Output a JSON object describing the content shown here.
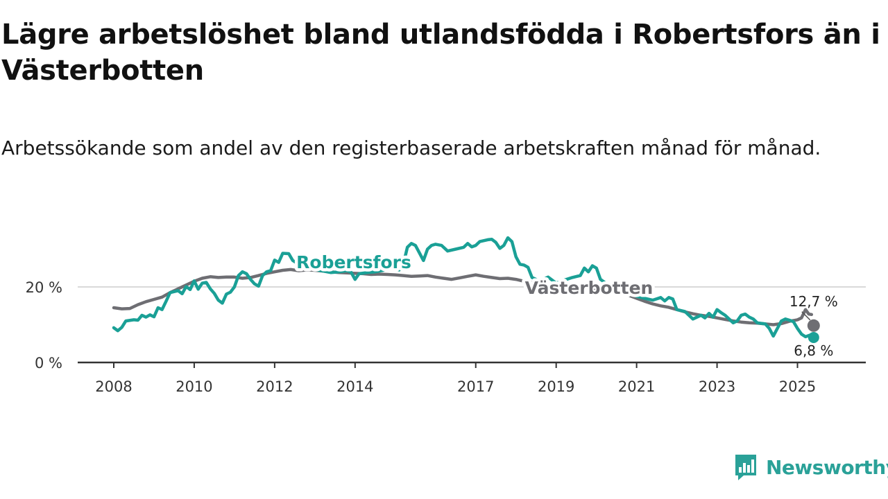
{
  "title": "Lägre arbetslöshet bland utlandsfödda i Robertsfors än i Västerbotten",
  "subtitle": "Arbetssökande som andel av den registerbaserade arbetskraften månad för månad.",
  "brand": {
    "name": "Newsworthy",
    "icon": "newsworthy-logo-icon",
    "color": "#2aa198"
  },
  "chart_data": {
    "type": "line",
    "title": "Lägre arbetslöshet bland utlandsfödda i Robertsfors än i Västerbotten",
    "subtitle": "Arbetssökande som andel av den registerbaserade arbetskraften månad för månad.",
    "xlabel": "",
    "ylabel": "",
    "xlim": [
      2008.0,
      2025.75
    ],
    "ylim": [
      0,
      35
    ],
    "x_ticks": [
      {
        "value": 2008,
        "label": "2008"
      },
      {
        "value": 2010,
        "label": "2010"
      },
      {
        "value": 2012,
        "label": "2012"
      },
      {
        "value": 2014,
        "label": "2014"
      },
      {
        "value": 2017,
        "label": "2017"
      },
      {
        "value": 2019,
        "label": "2019"
      },
      {
        "value": 2021,
        "label": "2021"
      },
      {
        "value": 2023,
        "label": "2023"
      },
      {
        "value": 2025,
        "label": "2025"
      }
    ],
    "y_ticks": [
      {
        "value": 0,
        "label": "0 %"
      },
      {
        "value": 20,
        "label": "20 %"
      }
    ],
    "grid": true,
    "series": [
      {
        "name": "Västerbotten",
        "color": "#6e6e73",
        "end_label": "12,7 %",
        "points": [
          [
            2008.0,
            14.5
          ],
          [
            2008.2,
            14.2
          ],
          [
            2008.4,
            14.3
          ],
          [
            2008.6,
            15.3
          ],
          [
            2008.8,
            16.1
          ],
          [
            2009.0,
            16.7
          ],
          [
            2009.2,
            17.3
          ],
          [
            2009.4,
            18.5
          ],
          [
            2009.6,
            19.5
          ],
          [
            2009.8,
            20.5
          ],
          [
            2010.0,
            21.5
          ],
          [
            2010.2,
            22.3
          ],
          [
            2010.4,
            22.7
          ],
          [
            2010.6,
            22.5
          ],
          [
            2010.8,
            22.6
          ],
          [
            2011.0,
            22.6
          ],
          [
            2011.2,
            22.3
          ],
          [
            2011.4,
            22.5
          ],
          [
            2011.6,
            23.0
          ],
          [
            2011.8,
            23.6
          ],
          [
            2012.0,
            24.0
          ],
          [
            2012.2,
            24.4
          ],
          [
            2012.4,
            24.6
          ],
          [
            2012.6,
            24.3
          ],
          [
            2012.8,
            24.5
          ],
          [
            2013.0,
            24.4
          ],
          [
            2013.2,
            24.2
          ],
          [
            2013.4,
            24.0
          ],
          [
            2013.6,
            23.8
          ],
          [
            2013.8,
            23.7
          ],
          [
            2014.0,
            23.6
          ],
          [
            2014.2,
            23.5
          ],
          [
            2014.4,
            23.3
          ],
          [
            2014.6,
            23.4
          ],
          [
            2014.8,
            23.3
          ],
          [
            2015.0,
            23.2
          ],
          [
            2015.2,
            23.0
          ],
          [
            2015.4,
            22.8
          ],
          [
            2015.6,
            22.9
          ],
          [
            2015.8,
            23.0
          ],
          [
            2016.0,
            22.6
          ],
          [
            2016.2,
            22.3
          ],
          [
            2016.4,
            22.0
          ],
          [
            2016.6,
            22.4
          ],
          [
            2016.8,
            22.8
          ],
          [
            2017.0,
            23.2
          ],
          [
            2017.2,
            22.8
          ],
          [
            2017.4,
            22.5
          ],
          [
            2017.6,
            22.2
          ],
          [
            2017.8,
            22.3
          ],
          [
            2018.0,
            22.0
          ],
          [
            2018.2,
            21.5
          ],
          [
            2018.4,
            21.2
          ],
          [
            2018.6,
            21.0
          ],
          [
            2018.8,
            20.8
          ],
          [
            2019.0,
            20.6
          ],
          [
            2019.2,
            20.3
          ],
          [
            2019.4,
            20.0
          ],
          [
            2019.6,
            19.7
          ],
          [
            2019.8,
            19.4
          ],
          [
            2020.0,
            19.1
          ],
          [
            2020.2,
            18.8
          ],
          [
            2020.4,
            18.5
          ],
          [
            2020.6,
            18.2
          ],
          [
            2020.8,
            17.8
          ],
          [
            2021.0,
            17.0
          ],
          [
            2021.2,
            16.2
          ],
          [
            2021.4,
            15.5
          ],
          [
            2021.6,
            15.0
          ],
          [
            2021.8,
            14.6
          ],
          [
            2022.0,
            14.0
          ],
          [
            2022.2,
            13.4
          ],
          [
            2022.4,
            12.9
          ],
          [
            2022.6,
            12.5
          ],
          [
            2022.8,
            12.2
          ],
          [
            2023.0,
            11.8
          ],
          [
            2023.2,
            11.4
          ],
          [
            2023.4,
            11.0
          ],
          [
            2023.6,
            10.7
          ],
          [
            2023.8,
            10.5
          ],
          [
            2024.0,
            10.4
          ],
          [
            2024.2,
            10.2
          ],
          [
            2024.4,
            10.0
          ],
          [
            2024.6,
            10.3
          ],
          [
            2024.8,
            10.9
          ],
          [
            2025.0,
            11.3
          ],
          [
            2025.1,
            11.8
          ],
          [
            2025.2,
            14.0
          ],
          [
            2025.28,
            12.8
          ],
          [
            2025.35,
            12.7
          ]
        ]
      },
      {
        "name": "Robertsfors",
        "color": "#1aa096",
        "end_label": "6,8 %",
        "points": [
          [
            2008.0,
            9.2
          ],
          [
            2008.1,
            8.4
          ],
          [
            2008.2,
            9.3
          ],
          [
            2008.3,
            11.0
          ],
          [
            2008.5,
            11.3
          ],
          [
            2008.6,
            11.2
          ],
          [
            2008.7,
            12.5
          ],
          [
            2008.8,
            12.0
          ],
          [
            2008.9,
            12.6
          ],
          [
            2009.0,
            12.1
          ],
          [
            2009.1,
            14.5
          ],
          [
            2009.2,
            14.0
          ],
          [
            2009.3,
            16.2
          ],
          [
            2009.4,
            18.5
          ],
          [
            2009.6,
            19.0
          ],
          [
            2009.7,
            18.2
          ],
          [
            2009.8,
            20.1
          ],
          [
            2009.9,
            19.3
          ],
          [
            2010.0,
            21.6
          ],
          [
            2010.1,
            19.4
          ],
          [
            2010.2,
            21.0
          ],
          [
            2010.3,
            21.2
          ],
          [
            2010.4,
            19.5
          ],
          [
            2010.5,
            18.3
          ],
          [
            2010.6,
            16.5
          ],
          [
            2010.7,
            15.7
          ],
          [
            2010.8,
            18.1
          ],
          [
            2010.9,
            18.6
          ],
          [
            2011.0,
            20.0
          ],
          [
            2011.1,
            23.0
          ],
          [
            2011.2,
            24.0
          ],
          [
            2011.3,
            23.5
          ],
          [
            2011.4,
            22.0
          ],
          [
            2011.5,
            20.8
          ],
          [
            2011.6,
            20.2
          ],
          [
            2011.7,
            23.0
          ],
          [
            2011.8,
            24.0
          ],
          [
            2011.9,
            24.3
          ],
          [
            2012.0,
            27.1
          ],
          [
            2012.1,
            26.5
          ],
          [
            2012.2,
            28.9
          ],
          [
            2012.35,
            28.8
          ],
          [
            2012.45,
            27.0
          ],
          [
            2012.6,
            26.0
          ],
          [
            2012.8,
            25.2
          ],
          [
            2013.0,
            24.6
          ],
          [
            2013.2,
            24.2
          ],
          [
            2013.4,
            23.8
          ],
          [
            2013.6,
            24.0
          ],
          [
            2013.8,
            24.3
          ],
          [
            2013.9,
            23.9
          ],
          [
            2014.0,
            22.0
          ],
          [
            2014.1,
            23.5
          ],
          [
            2014.3,
            23.8
          ],
          [
            2014.5,
            24.0
          ],
          [
            2014.7,
            24.4
          ],
          [
            2014.9,
            25.0
          ],
          [
            2015.1,
            24.5
          ],
          [
            2015.2,
            26.0
          ],
          [
            2015.3,
            30.5
          ],
          [
            2015.4,
            31.5
          ],
          [
            2015.5,
            31.0
          ],
          [
            2015.6,
            29.0
          ],
          [
            2015.7,
            27.0
          ],
          [
            2015.8,
            30.0
          ],
          [
            2015.9,
            31.0
          ],
          [
            2016.0,
            31.3
          ],
          [
            2016.15,
            31.0
          ],
          [
            2016.3,
            29.5
          ],
          [
            2016.5,
            30.0
          ],
          [
            2016.7,
            30.5
          ],
          [
            2016.8,
            31.5
          ],
          [
            2016.9,
            30.6
          ],
          [
            2017.0,
            31.0
          ],
          [
            2017.1,
            32.0
          ],
          [
            2017.3,
            32.5
          ],
          [
            2017.4,
            32.6
          ],
          [
            2017.5,
            31.8
          ],
          [
            2017.6,
            30.2
          ],
          [
            2017.7,
            31.0
          ],
          [
            2017.8,
            33.0
          ],
          [
            2017.9,
            32.0
          ],
          [
            2018.0,
            28.0
          ],
          [
            2018.1,
            26.0
          ],
          [
            2018.2,
            25.8
          ],
          [
            2018.3,
            25.2
          ],
          [
            2018.4,
            22.5
          ],
          [
            2018.6,
            21.5
          ],
          [
            2018.8,
            22.6
          ],
          [
            2019.0,
            21.0
          ],
          [
            2019.2,
            21.8
          ],
          [
            2019.4,
            22.5
          ],
          [
            2019.6,
            23.0
          ],
          [
            2019.7,
            25.0
          ],
          [
            2019.8,
            24.0
          ],
          [
            2019.9,
            25.6
          ],
          [
            2020.0,
            25.0
          ],
          [
            2020.1,
            22.0
          ],
          [
            2020.3,
            20.5
          ],
          [
            2020.5,
            19.5
          ],
          [
            2020.7,
            18.8
          ],
          [
            2020.9,
            18.5
          ],
          [
            2021.0,
            17.5
          ],
          [
            2021.2,
            17.0
          ],
          [
            2021.4,
            16.5
          ],
          [
            2021.6,
            17.2
          ],
          [
            2021.7,
            16.3
          ],
          [
            2021.8,
            17.2
          ],
          [
            2021.9,
            16.8
          ],
          [
            2022.0,
            14.0
          ],
          [
            2022.2,
            13.5
          ],
          [
            2022.4,
            11.5
          ],
          [
            2022.6,
            12.5
          ],
          [
            2022.7,
            11.8
          ],
          [
            2022.8,
            13.0
          ],
          [
            2022.9,
            12.0
          ],
          [
            2023.0,
            14.0
          ],
          [
            2023.1,
            13.2
          ],
          [
            2023.2,
            12.5
          ],
          [
            2023.3,
            11.5
          ],
          [
            2023.4,
            10.5
          ],
          [
            2023.5,
            11.0
          ],
          [
            2023.6,
            12.5
          ],
          [
            2023.7,
            12.8
          ],
          [
            2023.8,
            12.0
          ],
          [
            2023.9,
            11.5
          ],
          [
            2024.0,
            10.5
          ],
          [
            2024.2,
            10.2
          ],
          [
            2024.3,
            9.0
          ],
          [
            2024.4,
            7.0
          ],
          [
            2024.5,
            9.0
          ],
          [
            2024.6,
            11.0
          ],
          [
            2024.7,
            11.5
          ],
          [
            2024.8,
            11.2
          ],
          [
            2024.9,
            10.8
          ],
          [
            2025.0,
            9.0
          ],
          [
            2025.1,
            7.5
          ],
          [
            2025.2,
            6.8
          ],
          [
            2025.3,
            7.2
          ],
          [
            2025.35,
            6.8
          ]
        ]
      }
    ],
    "annotations": [
      {
        "text": "Robertsfors",
        "series": "Robertsfors"
      },
      {
        "text": "Västerbotten",
        "series": "Västerbotten"
      }
    ]
  }
}
